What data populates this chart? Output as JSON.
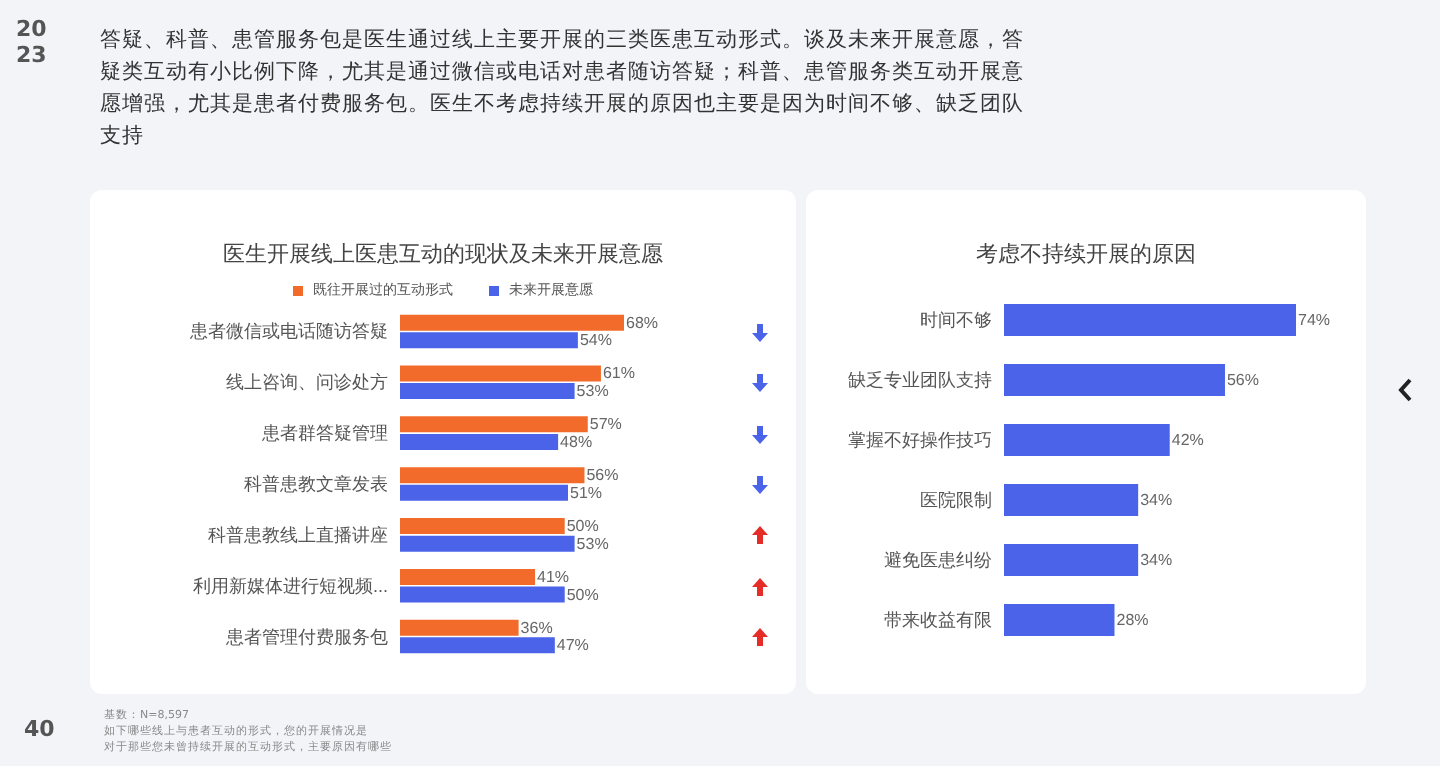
{
  "chart_data": [
    {
      "type": "bar",
      "orientation": "horizontal",
      "title": "医生开展线上医患互动的现状及未来开展意愿",
      "categories": [
        "患者微信或电话随访答疑",
        "线上咨询、问诊处方",
        "患者群答疑管理",
        "科普患教文章发表",
        "科普患教线上直播讲座",
        "利用新媒体进行短视频...",
        "患者管理付费服务包"
      ],
      "series": [
        {
          "name": "既往开展过的互动形式",
          "color": "#f26b2a",
          "values": [
            68,
            61,
            57,
            56,
            50,
            41,
            36
          ],
          "value_labels": [
            "68%",
            "61%",
            "57%",
            "56%",
            "50%",
            "41%",
            "36%"
          ]
        },
        {
          "name": "未来开展意愿",
          "color": "#4a63e8",
          "values": [
            54,
            53,
            48,
            51,
            53,
            50,
            47
          ],
          "value_labels": [
            "54%",
            "53%",
            "48%",
            "51%",
            "53%",
            "50%",
            "47%"
          ]
        }
      ],
      "legend": "top",
      "annotations": [
        "2023",
        "答疑、科普、患管服务包是医生通过线上主要开展的三类医患互动形式。谈及未来开展意愿，答疑类互动有小比例下降，尤其是通过微信或电话对患者随访答疑；科普、患管服务类互动开展意愿增强，尤其是患者付费服务包。医生不考虑持续开展的原因也主要是因为时间不够、缺乏团队支持",
        "基数：N=8,597",
        "如下哪些线上与患者互动的形式，您的开展情况是",
        "对于那些您未曾持续开展的互动形式，主要原因有哪些",
        "40"
      ]
    },
    {
      "type": "bar",
      "orientation": "horizontal",
      "title": "考虑不持续开展的原因",
      "categories": [
        "时间不够",
        "缺乏专业团队支持",
        "掌握不好操作技巧",
        "医院限制",
        "避免医患纠纷",
        "带来收益有限"
      ],
      "series": [
        {
          "color": "#4a63e8",
          "values": [
            74,
            56,
            42,
            34,
            34,
            28
          ],
          "value_labels": [
            "74%",
            "56%",
            "42%",
            "34%",
            "34%",
            "28%"
          ]
        }
      ]
    }
  ]
}
